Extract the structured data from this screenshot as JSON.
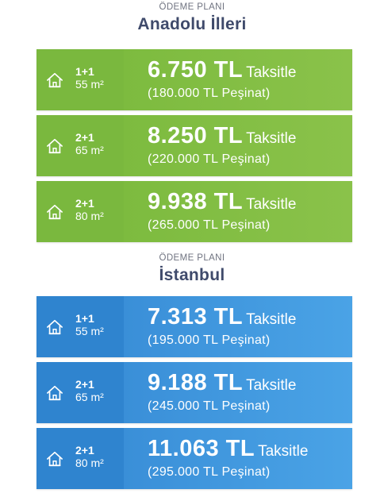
{
  "sections": [
    {
      "subtitle": "ÖDEME PLANI",
      "title": "Anadolu İlleri",
      "color": "#7ab83e",
      "plans": [
        {
          "rooms": "1+1",
          "area": "55 m²",
          "installment": "6.750 TL",
          "installment_label": "Taksitle",
          "down_payment": "(180.000 TL Peşinat)"
        },
        {
          "rooms": "2+1",
          "area": "65 m²",
          "installment": "8.250 TL",
          "installment_label": "Taksitle",
          "down_payment": "(220.000 TL Peşinat)"
        },
        {
          "rooms": "2+1",
          "area": "80 m²",
          "installment": "9.938 TL",
          "installment_label": "Taksitle",
          "down_payment": "(265.000 TL Peşinat)"
        }
      ]
    },
    {
      "subtitle": "ÖDEME PLANI",
      "title": "İstanbul",
      "color": "#2f84cf",
      "plans": [
        {
          "rooms": "1+1",
          "area": "55 m²",
          "installment": "7.313 TL",
          "installment_label": "Taksitle",
          "down_payment": "(195.000 TL Peşinat)"
        },
        {
          "rooms": "2+1",
          "area": "65 m²",
          "installment": "9.188 TL",
          "installment_label": "Taksitle",
          "down_payment": "(245.000 TL Peşinat)"
        },
        {
          "rooms": "2+1",
          "area": "80 m²",
          "installment": "11.063 TL",
          "installment_label": "Taksitle",
          "down_payment": "(295.000 TL Peşinat)"
        }
      ]
    }
  ],
  "icons": {
    "plan_icon": "house-icon"
  }
}
